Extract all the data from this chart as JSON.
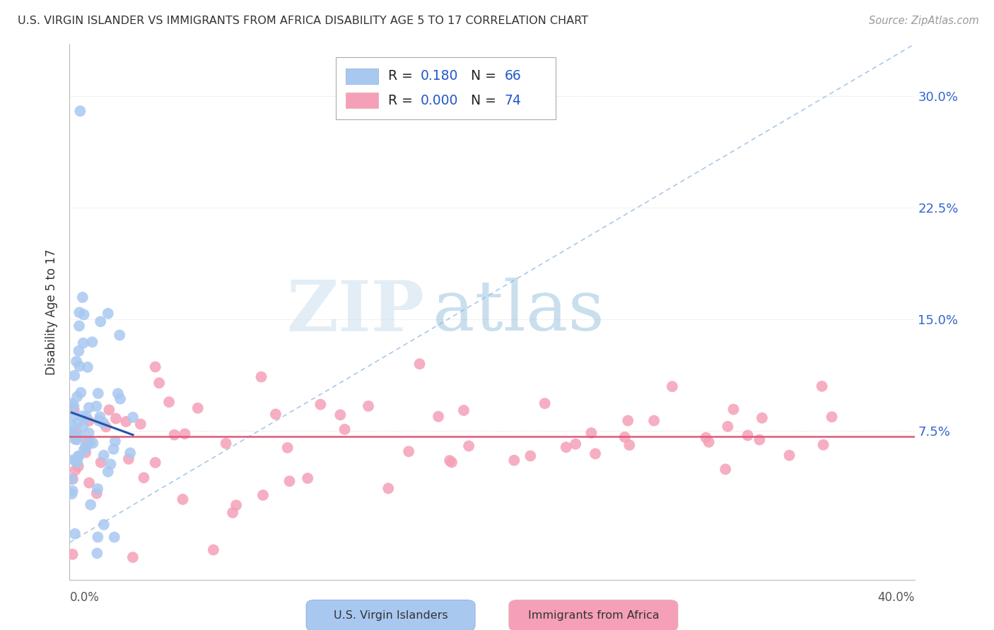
{
  "title": "U.S. VIRGIN ISLANDER VS IMMIGRANTS FROM AFRICA DISABILITY AGE 5 TO 17 CORRELATION CHART",
  "source": "Source: ZipAtlas.com",
  "ylabel": "Disability Age 5 to 17",
  "ytick_vals": [
    0.0,
    0.075,
    0.15,
    0.225,
    0.3
  ],
  "ytick_labels": [
    "",
    "7.5%",
    "15.0%",
    "22.5%",
    "30.0%"
  ],
  "xlim": [
    0.0,
    0.4
  ],
  "ylim": [
    -0.025,
    0.335
  ],
  "blue_R": 0.18,
  "blue_N": 66,
  "pink_R": 0.0,
  "pink_N": 74,
  "blue_label": "U.S. Virgin Islanders",
  "pink_label": "Immigrants from Africa",
  "blue_color": "#a8c8f0",
  "blue_line_color": "#2255aa",
  "pink_color": "#f5a0b8",
  "pink_line_color": "#e05878",
  "diag_color": "#aac8e8",
  "grid_color": "#dddddd",
  "watermark_zip_color": "#c8dff0",
  "watermark_atlas_color": "#90b8d8"
}
